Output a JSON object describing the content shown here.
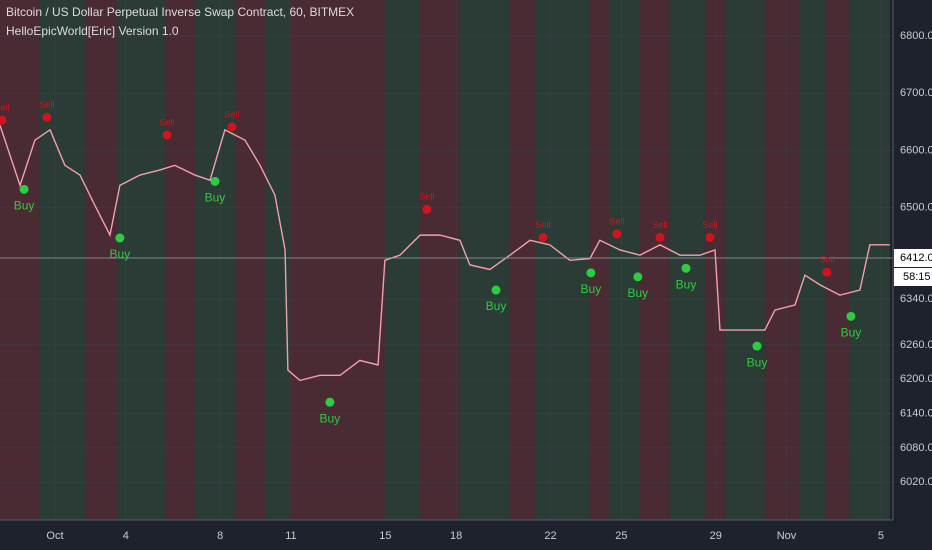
{
  "chart_data": {
    "type": "line",
    "title": "Bitcoin / US Dollar Perpetual Inverse Swap Contract, 60, BITMEX",
    "subtitle": "HelloEpicWorld[Eric] Version 1.0",
    "x": [
      -2.33,
      -1.48,
      -0.85,
      -0.21,
      0.42,
      1.06,
      1.69,
      2.33,
      2.75,
      3.6,
      4.45,
      5.08,
      5.93,
      6.57,
      7.2,
      8.05,
      8.69,
      9.32,
      9.75,
      9.87,
      10.38,
      11.23,
      12.08,
      12.92,
      13.69,
      13.98,
      14.62,
      15.47,
      16.31,
      17.16,
      17.58,
      18.43,
      19.28,
      20.13,
      20.97,
      21.82,
      22.67,
      23.09,
      23.94,
      24.79,
      25.64,
      26.48,
      27.33,
      27.97,
      28.18,
      29.03,
      30.08,
      30.51,
      31.36,
      31.78,
      32.42,
      33.26,
      34.11,
      34.53,
      35.38
    ],
    "values": [
      6644,
      6539,
      6618,
      6636,
      6574,
      6557,
      6504,
      6452,
      6539,
      6557,
      6566,
      6574,
      6557,
      6548,
      6636,
      6618,
      6574,
      6522,
      6426,
      6216,
      6198,
      6207,
      6207,
      6233,
      6225,
      6408,
      6417,
      6452,
      6452,
      6443,
      6400,
      6392,
      6417,
      6443,
      6435,
      6408,
      6411,
      6443,
      6426,
      6417,
      6435,
      6417,
      6417,
      6426,
      6286,
      6286,
      6286,
      6321,
      6330,
      6382,
      6365,
      6347,
      6356,
      6435,
      6435
    ],
    "color": "#f3a0ae",
    "buy": {
      "label": "Buy",
      "color": "#2ecc40",
      "x": [
        -1.31,
        2.75,
        6.78,
        11.65,
        18.69,
        22.71,
        24.7,
        26.74,
        29.75,
        33.73
      ],
      "values": [
        6532,
        6447,
        6546,
        6160,
        6356,
        6386,
        6379,
        6394,
        6258,
        6310
      ]
    },
    "sell": {
      "label": "Sell",
      "color": "#d0141e",
      "x": [
        -2.25,
        -0.34,
        4.75,
        7.5,
        15.76,
        20.68,
        23.81,
        25.64,
        27.75,
        32.71
      ],
      "values": [
        6653,
        6658,
        6627,
        6641,
        6497,
        6448,
        6454,
        6448,
        6448,
        6387
      ]
    },
    "regions": [
      {
        "x0": -2.33,
        "x1": -0.64,
        "color": "#4a2a33"
      },
      {
        "x0": -0.64,
        "x1": 1.27,
        "color": "#2a3c35"
      },
      {
        "x0": 1.27,
        "x1": 2.67,
        "color": "#4a2a33"
      },
      {
        "x0": 2.67,
        "x1": 4.66,
        "color": "#2a3c35"
      },
      {
        "x0": 4.66,
        "x1": 5.93,
        "color": "#4a2a33"
      },
      {
        "x0": 5.93,
        "x1": 7.63,
        "color": "#2a3c35"
      },
      {
        "x0": 7.63,
        "x1": 8.9,
        "color": "#4a2a33"
      },
      {
        "x0": 8.9,
        "x1": 9.96,
        "color": "#2a3c35"
      },
      {
        "x0": 9.96,
        "x1": 13.98,
        "color": "#4a2a33"
      },
      {
        "x0": 13.98,
        "x1": 15.47,
        "color": "#2a3c35"
      },
      {
        "x0": 15.47,
        "x1": 17.16,
        "color": "#4a2a33"
      },
      {
        "x0": 17.16,
        "x1": 19.28,
        "color": "#2a3c35"
      },
      {
        "x0": 19.28,
        "x1": 20.34,
        "color": "#4a2a33"
      },
      {
        "x0": 20.34,
        "x1": 22.67,
        "color": "#2a3c35"
      },
      {
        "x0": 22.67,
        "x1": 23.52,
        "color": "#4a2a33"
      },
      {
        "x0": 23.52,
        "x1": 24.79,
        "color": "#2a3c35"
      },
      {
        "x0": 24.79,
        "x1": 26.06,
        "color": "#4a2a33"
      },
      {
        "x0": 26.06,
        "x1": 27.54,
        "color": "#2a3c35"
      },
      {
        "x0": 27.54,
        "x1": 28.39,
        "color": "#4a2a33"
      },
      {
        "x0": 28.39,
        "x1": 30.08,
        "color": "#2a3c35"
      },
      {
        "x0": 30.08,
        "x1": 31.57,
        "color": "#4a2a33"
      },
      {
        "x0": 31.57,
        "x1": 32.63,
        "color": "#2a3c35"
      },
      {
        "x0": 32.63,
        "x1": 33.69,
        "color": "#4a2a33"
      },
      {
        "x0": 33.69,
        "x1": 35.38,
        "color": "#2a3c35"
      }
    ],
    "current_price": {
      "value": 6412,
      "label": "6412.0"
    },
    "countdown": "58:15",
    "xlim": [
      -2.33,
      35.47
    ],
    "ylim": [
      5954,
      6863
    ],
    "xticks": [
      {
        "value": 0,
        "label": "Oct"
      },
      {
        "value": 3,
        "label": "4"
      },
      {
        "value": 7,
        "label": "8"
      },
      {
        "value": 10,
        "label": "11"
      },
      {
        "value": 14,
        "label": "15"
      },
      {
        "value": 17,
        "label": "18"
      },
      {
        "value": 21,
        "label": "22"
      },
      {
        "value": 24,
        "label": "25"
      },
      {
        "value": 28,
        "label": "29"
      },
      {
        "value": 31,
        "label": "Nov"
      },
      {
        "value": 35,
        "label": "5"
      }
    ],
    "yticks": [
      {
        "value": 6020,
        "label": "6020.0"
      },
      {
        "value": 6080,
        "label": "6080.0"
      },
      {
        "value": 6140,
        "label": "6140.0"
      },
      {
        "value": 6200,
        "label": "6200.0"
      },
      {
        "value": 6260,
        "label": "6260.0"
      },
      {
        "value": 6340,
        "label": "6340.0"
      },
      {
        "value": 6500,
        "label": "6500.0"
      },
      {
        "value": 6600,
        "label": "6600.0"
      },
      {
        "value": 6700,
        "label": "6700.0"
      },
      {
        "value": 6800,
        "label": "6800.0"
      }
    ],
    "grid": true
  }
}
